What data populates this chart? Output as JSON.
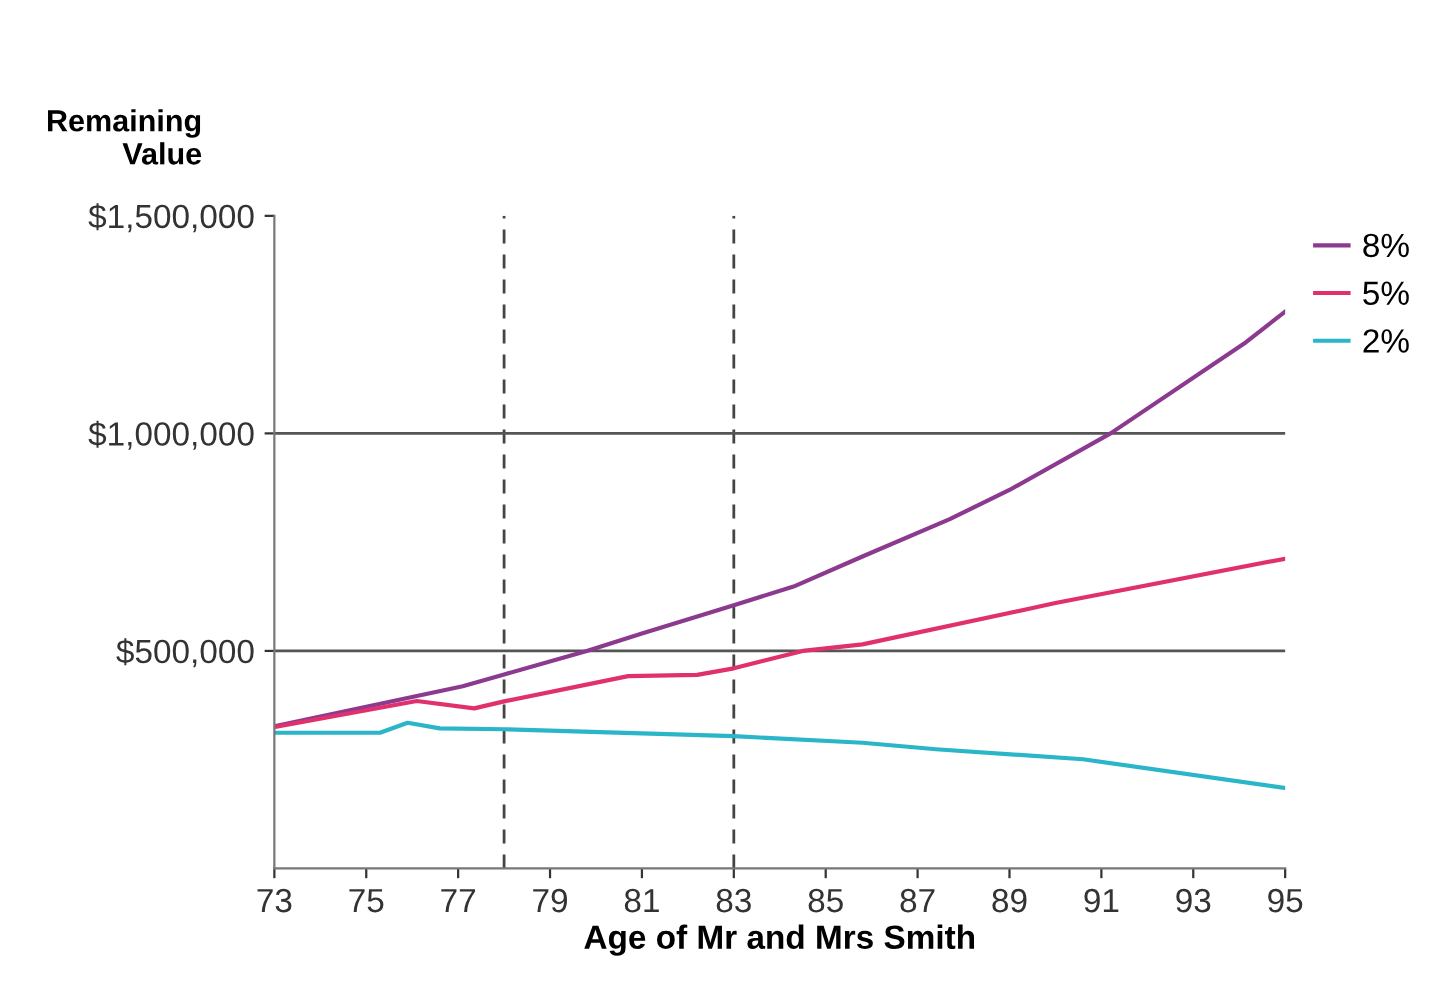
{
  "chart_data": {
    "type": "line",
    "xlabel": "Age of Mr and Mrs Smith",
    "ylabel": "Remaining\nValue",
    "xlim": [
      73,
      95
    ],
    "xticks": [
      73,
      75,
      77,
      79,
      81,
      83,
      85,
      87,
      89,
      91,
      93,
      95
    ],
    "ylim": [
      0,
      1500000
    ],
    "yticks": [
      {
        "value": 500000,
        "label": "$500,000"
      },
      {
        "value": 1000000,
        "label": "$1,000,000"
      },
      {
        "value": 1500000,
        "label": "$1,500,000"
      }
    ],
    "grid": false,
    "legend": "top right",
    "line_style": "solid",
    "series": [
      {
        "name": "8%",
        "color": "#8b3a8f",
        "x": [
          73,
          77.1,
          78,
          79.8,
          81,
          83,
          84.3,
          85.8,
          87.7,
          89,
          91.2,
          94.1,
          95
        ],
        "values": [
          327000,
          419000,
          446000,
          500000,
          540000,
          605000,
          648000,
          717000,
          803000,
          870000,
          1000000,
          1206000,
          1280000
        ]
      },
      {
        "name": "5%",
        "color": "#e0306e",
        "x": [
          73,
          76.1,
          77.35,
          78,
          80.7,
          82.2,
          83,
          84.5,
          85.8,
          90,
          95
        ],
        "values": [
          325000,
          385000,
          368000,
          384000,
          442000,
          445000,
          460000,
          500000,
          515000,
          610000,
          712000
        ]
      },
      {
        "name": "2%",
        "color": "#2ab5c8",
        "x": [
          73,
          75.3,
          75.9,
          76.6,
          78,
          83,
          85.8,
          87.4,
          90.6,
          95
        ],
        "values": [
          312000,
          312000,
          335000,
          322000,
          320000,
          304000,
          289000,
          274000,
          251000,
          185000
        ]
      }
    ],
    "ref_lines": [
      {
        "axis": "x",
        "value": 78,
        "color": "#444444",
        "line_style": "dashed"
      },
      {
        "axis": "x",
        "value": 83,
        "color": "#444444",
        "line_style": "dashed"
      },
      {
        "axis": "y",
        "value": 500000,
        "color": "#555555",
        "line_style": "solid"
      },
      {
        "axis": "y",
        "value": 1000000,
        "color": "#555555",
        "line_style": "solid"
      }
    ]
  }
}
